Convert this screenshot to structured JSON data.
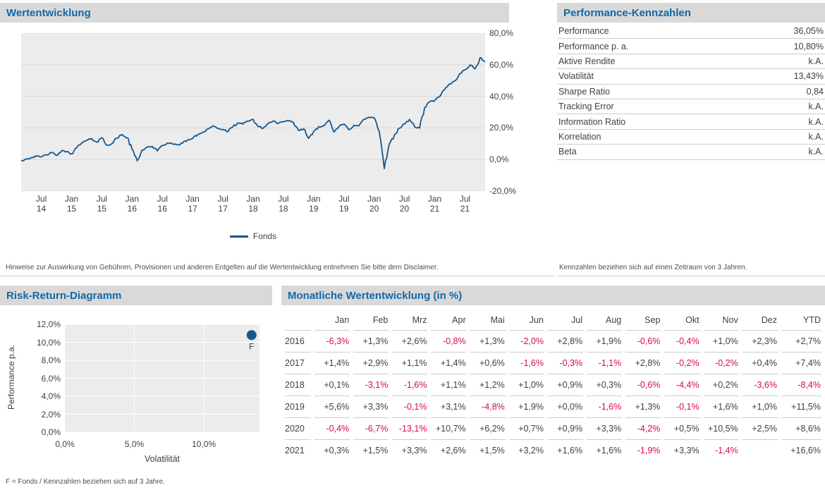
{
  "colors": {
    "title_blue": "#1268a9",
    "header_bar_bg": "#d9d9d9",
    "chart_bg": "#ececec",
    "main_grid": "#dadada",
    "risk_grid": "#ffffff",
    "line_blue": "#14578f",
    "negative_red": "#d40a50",
    "text_dark": "#3f3f3f",
    "row_border": "#cccccc"
  },
  "performance_panel": {
    "title": "Wertentwicklung",
    "legend_label": "Fonds",
    "footnote": "Hinweise zur Auswirkung von Gebühren, Provisionen und anderen Entgelten auf die Wertentwicklung entnehmen Sie bitte dem Disclaimer."
  },
  "kennzahlen_panel": {
    "title": "Performance-Kennzahlen",
    "rows": [
      {
        "label": "Performance",
        "value": "36,05%"
      },
      {
        "label": "Performance p. a.",
        "value": "10,80%"
      },
      {
        "label": "Aktive Rendite",
        "value": "k.A."
      },
      {
        "label": "Volatilität",
        "value": "13,43%"
      },
      {
        "label": "Sharpe Ratio",
        "value": "0,84"
      },
      {
        "label": "Tracking Error",
        "value": "k.A."
      },
      {
        "label": "Information Ratio",
        "value": "k.A."
      },
      {
        "label": "Korrelation",
        "value": "k.A."
      },
      {
        "label": "Beta",
        "value": "k.A."
      }
    ],
    "footnote": "Kennzahlen beziehen sich auf einen Zeitraum von 3 Jahren."
  },
  "risk_return_panel": {
    "title": "Risk-Return-Diagramm",
    "xlabel": "Volatilität",
    "ylabel": "Performance p.a.",
    "point_label": "F",
    "footnote": "F = Fonds / Kennzahlen beziehen sich auf 3 Jahre."
  },
  "monthly_panel": {
    "title": "Monatliche Wertentwicklung (in %)",
    "columns": [
      "Jan",
      "Feb",
      "Mrz",
      "Apr",
      "Mai",
      "Jun",
      "Jul",
      "Aug",
      "Sep",
      "Okt",
      "Nov",
      "Dez",
      "YTD"
    ],
    "rows": [
      {
        "year": "2016",
        "values": [
          "-6,3%",
          "+1,3%",
          "+2,6%",
          "-0,8%",
          "+1,3%",
          "-2,0%",
          "+2,8%",
          "+1,9%",
          "-0,6%",
          "-0,4%",
          "+1,0%",
          "+2,3%",
          "+2,7%"
        ]
      },
      {
        "year": "2017",
        "values": [
          "+1,4%",
          "+2,9%",
          "+1,1%",
          "+1,4%",
          "+0,6%",
          "-1,6%",
          "-0,3%",
          "-1,1%",
          "+2,8%",
          "-0,2%",
          "-0,2%",
          "+0,4%",
          "+7,4%"
        ]
      },
      {
        "year": "2018",
        "values": [
          "+0,1%",
          "-3,1%",
          "-1,6%",
          "+1,1%",
          "+1,2%",
          "+1,0%",
          "+0,9%",
          "+0,3%",
          "-0,6%",
          "-4,4%",
          "+0,2%",
          "-3,6%",
          "-8,4%"
        ]
      },
      {
        "year": "2019",
        "values": [
          "+5,6%",
          "+3,3%",
          "-0,1%",
          "+3,1%",
          "-4,8%",
          "+1,9%",
          "+0,0%",
          "-1,6%",
          "+1,3%",
          "-0,1%",
          "+1,6%",
          "+1,0%",
          "+11,5%"
        ]
      },
      {
        "year": "2020",
        "values": [
          "-0,4%",
          "-6,7%",
          "-13,1%",
          "+10,7%",
          "+6,2%",
          "+0,7%",
          "+0,9%",
          "+3,3%",
          "-4,2%",
          "+0,5%",
          "+10,5%",
          "+2,5%",
          "+8,6%"
        ]
      },
      {
        "year": "2021",
        "values": [
          "+0,3%",
          "+1,5%",
          "+3,3%",
          "+2,6%",
          "+1,5%",
          "+3,2%",
          "+1,6%",
          "+1,6%",
          "-1,9%",
          "+3,3%",
          "-1,4%",
          "",
          "+16,6%"
        ]
      }
    ]
  },
  "chart_data": [
    {
      "type": "line",
      "title": "Wertentwicklung",
      "ylabel": "",
      "xlabel": "",
      "ylim": [
        -20,
        80
      ],
      "grid": true,
      "legend_position": "bottom",
      "legend_entries": [
        "Fonds"
      ],
      "y_ticks": [
        "80,0%",
        "60,0%",
        "40,0%",
        "20,0%",
        "0,0%",
        "-20,0%"
      ],
      "x_ticks": [
        {
          "month": "Jul",
          "year": "14"
        },
        {
          "month": "Jan",
          "year": "15"
        },
        {
          "month": "Jul",
          "year": "15"
        },
        {
          "month": "Jan",
          "year": "16"
        },
        {
          "month": "Jul",
          "year": "16"
        },
        {
          "month": "Jan",
          "year": "17"
        },
        {
          "month": "Jul",
          "year": "17"
        },
        {
          "month": "Jan",
          "year": "18"
        },
        {
          "month": "Jul",
          "year": "18"
        },
        {
          "month": "Jan",
          "year": "19"
        },
        {
          "month": "Jul",
          "year": "19"
        },
        {
          "month": "Jan",
          "year": "20"
        },
        {
          "month": "Jul",
          "year": "20"
        },
        {
          "month": "Jan",
          "year": "21"
        },
        {
          "month": "Jul",
          "year": "21"
        }
      ],
      "series": [
        {
          "name": "Fonds",
          "x": [
            "2014-03",
            "2014-04",
            "2014-05",
            "2014-06",
            "2014-07",
            "2014-08",
            "2014-09",
            "2014-10",
            "2014-11",
            "2014-12",
            "2015-01",
            "2015-02",
            "2015-03",
            "2015-04",
            "2015-05",
            "2015-06",
            "2015-07",
            "2015-08",
            "2015-09",
            "2015-10",
            "2015-11",
            "2015-12",
            "2016-01",
            "2016-02",
            "2016-03",
            "2016-04",
            "2016-05",
            "2016-06",
            "2016-07",
            "2016-08",
            "2016-09",
            "2016-10",
            "2016-11",
            "2016-12",
            "2017-01",
            "2017-02",
            "2017-03",
            "2017-04",
            "2017-05",
            "2017-06",
            "2017-07",
            "2017-08",
            "2017-09",
            "2017-10",
            "2017-11",
            "2017-12",
            "2018-01",
            "2018-02",
            "2018-03",
            "2018-04",
            "2018-05",
            "2018-06",
            "2018-07",
            "2018-08",
            "2018-09",
            "2018-10",
            "2018-11",
            "2018-12",
            "2019-01",
            "2019-02",
            "2019-03",
            "2019-04",
            "2019-05",
            "2019-06",
            "2019-07",
            "2019-08",
            "2019-09",
            "2019-10",
            "2019-11",
            "2019-12",
            "2020-01",
            "2020-02",
            "2020-03",
            "2020-04",
            "2020-05",
            "2020-06",
            "2020-07",
            "2020-08",
            "2020-09",
            "2020-10",
            "2020-11",
            "2020-12",
            "2021-01",
            "2021-02",
            "2021-03",
            "2021-04",
            "2021-05",
            "2021-06",
            "2021-07",
            "2021-08",
            "2021-09",
            "2021-10",
            "2021-11"
          ],
          "y": [
            -0.8,
            0.3,
            1.2,
            2.0,
            1.6,
            3.0,
            4.3,
            2.6,
            5.4,
            5.0,
            3.6,
            7.4,
            10.4,
            12.0,
            13.2,
            11.0,
            13.8,
            9.0,
            10.0,
            13.5,
            15.8,
            13.8,
            6.5,
            -0.8,
            6.0,
            7.8,
            8.3,
            5.4,
            8.8,
            10.4,
            9.8,
            9.4,
            10.3,
            12.4,
            13.3,
            15.8,
            17.2,
            19.3,
            21.3,
            19.6,
            19.0,
            17.6,
            20.8,
            23.2,
            22.4,
            24.3,
            25.4,
            20.8,
            19.8,
            22.8,
            24.4,
            22.9,
            23.8,
            24.4,
            23.4,
            18.4,
            19.4,
            13.4,
            17.8,
            20.8,
            21.4,
            24.8,
            17.4,
            20.8,
            22.4,
            18.8,
            21.8,
            21.4,
            25.4,
            26.8,
            26.4,
            17.8,
            -5.8,
            9.8,
            15.4,
            19.8,
            22.4,
            25.4,
            20.8,
            19.8,
            32.8,
            36.4,
            37.4,
            39.8,
            44.4,
            47.8,
            49.8,
            54.4,
            56.8,
            59.8,
            57.4,
            64.4,
            61.8
          ]
        }
      ]
    },
    {
      "type": "scatter",
      "title": "Risk-Return-Diagramm",
      "xlabel": "Volatilität",
      "ylabel": "Performance p.a.",
      "xlim": [
        0,
        14
      ],
      "ylim": [
        0,
        12
      ],
      "grid": true,
      "x_ticks": [
        "0,0%",
        "5,0%",
        "10,0%"
      ],
      "y_ticks": [
        "12,0%",
        "10,0%",
        "8,0%",
        "6,0%",
        "4,0%",
        "2,0%",
        "0,0%"
      ],
      "points": [
        {
          "label": "F",
          "x": 13.43,
          "y": 10.8
        }
      ]
    },
    {
      "type": "table",
      "title": "Monatliche Wertentwicklung (in %)",
      "columns": [
        "Jan",
        "Feb",
        "Mrz",
        "Apr",
        "Mai",
        "Jun",
        "Jul",
        "Aug",
        "Sep",
        "Okt",
        "Nov",
        "Dez",
        "YTD"
      ],
      "rows": [
        {
          "year": 2016,
          "values": [
            -6.3,
            1.3,
            2.6,
            -0.8,
            1.3,
            -2.0,
            2.8,
            1.9,
            -0.6,
            -0.4,
            1.0,
            2.3,
            2.7
          ]
        },
        {
          "year": 2017,
          "values": [
            1.4,
            2.9,
            1.1,
            1.4,
            0.6,
            -1.6,
            -0.3,
            -1.1,
            2.8,
            -0.2,
            -0.2,
            0.4,
            7.4
          ]
        },
        {
          "year": 2018,
          "values": [
            0.1,
            -3.1,
            -1.6,
            1.1,
            1.2,
            1.0,
            0.9,
            0.3,
            -0.6,
            -4.4,
            0.2,
            -3.6,
            -8.4
          ]
        },
        {
          "year": 2019,
          "values": [
            5.6,
            3.3,
            -0.1,
            3.1,
            -4.8,
            1.9,
            0.0,
            -1.6,
            1.3,
            -0.1,
            1.6,
            1.0,
            11.5
          ]
        },
        {
          "year": 2020,
          "values": [
            -0.4,
            -6.7,
            -13.1,
            10.7,
            6.2,
            0.7,
            0.9,
            3.3,
            -4.2,
            0.5,
            10.5,
            2.5,
            8.6
          ]
        },
        {
          "year": 2021,
          "values": [
            0.3,
            1.5,
            3.3,
            2.6,
            1.5,
            3.2,
            1.6,
            1.6,
            -1.9,
            3.3,
            -1.4,
            null,
            16.6
          ]
        }
      ]
    }
  ]
}
